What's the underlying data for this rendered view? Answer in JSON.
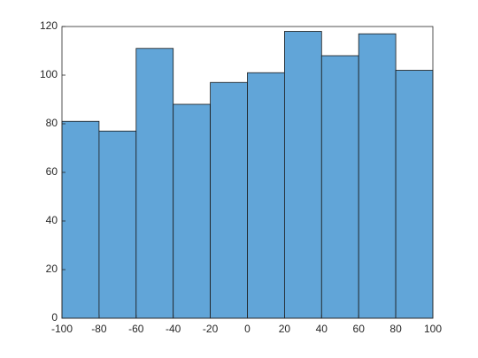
{
  "chart_data": {
    "type": "histogram",
    "bins": [
      -100,
      -80,
      -60,
      -40,
      -20,
      0,
      20,
      40,
      60,
      80,
      100
    ],
    "values": [
      81,
      77,
      111,
      88,
      97,
      101,
      118,
      108,
      117,
      102
    ],
    "color": "#61a5d8",
    "edgecolor": "#1a1a1a",
    "xlim": [
      -100,
      100
    ],
    "xticks": [
      -100,
      -80,
      -60,
      -40,
      -20,
      0,
      20,
      40,
      60,
      80,
      100
    ],
    "ylim": [
      0,
      120
    ],
    "yticks": [
      0,
      20,
      40,
      60,
      80,
      100,
      120
    ]
  }
}
